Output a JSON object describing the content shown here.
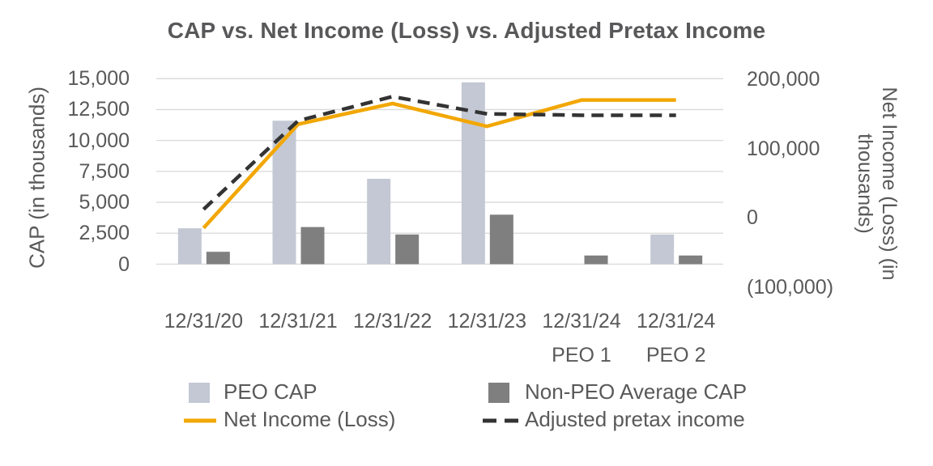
{
  "chart_data": {
    "type": "bar+line",
    "title": "CAP vs. Net Income (Loss) vs. Adjusted Pretax Income",
    "categories": [
      "12/31/20",
      "12/31/21",
      "12/31/22",
      "12/31/23",
      "12/31/24\nPEO 1",
      "12/31/24\nPEO 2"
    ],
    "bar_series": [
      {
        "name": "PEO CAP",
        "axis": "left",
        "color": "#c3c8d4",
        "values": [
          2900,
          11600,
          6900,
          14700,
          null,
          2400
        ]
      },
      {
        "name": "Non-PEO Average CAP",
        "axis": "left",
        "color": "#7f7f7f",
        "values": [
          1000,
          3000,
          2400,
          4000,
          700,
          700
        ]
      }
    ],
    "line_series": [
      {
        "name": "Net Income (Loss)",
        "axis": "right",
        "style": "solid",
        "color": "#f2a705",
        "values": [
          -15000,
          135000,
          165000,
          132000,
          170000,
          170000
        ]
      },
      {
        "name": "Adjusted pretax income",
        "axis": "right",
        "style": "dashed",
        "color": "#333333",
        "values": [
          12000,
          140000,
          175000,
          150000,
          148000,
          148000
        ]
      }
    ],
    "left_axis": {
      "title": "CAP (in thousands)",
      "min": 0,
      "max": 15000,
      "ticks": [
        {
          "label": "15,000",
          "value": 15000
        },
        {
          "label": "12,500",
          "value": 12500
        },
        {
          "label": "10,000",
          "value": 10000
        },
        {
          "label": "7,500",
          "value": 7500
        },
        {
          "label": "5,000",
          "value": 5000
        },
        {
          "label": "2,500",
          "value": 2500
        },
        {
          "label": "0",
          "value": 0
        }
      ]
    },
    "right_axis": {
      "title": "Net Income (Loss) (in thousands)",
      "min": -100000,
      "max": 200000,
      "ticks": [
        {
          "label": "200,000",
          "value": 200000
        },
        {
          "label": "100,000",
          "value": 100000
        },
        {
          "label": "0",
          "value": 0
        },
        {
          "label": "(100,000)",
          "value": -100000
        }
      ]
    },
    "grid": true,
    "grid_color": "#d9d9d9",
    "legend_position": "bottom"
  }
}
